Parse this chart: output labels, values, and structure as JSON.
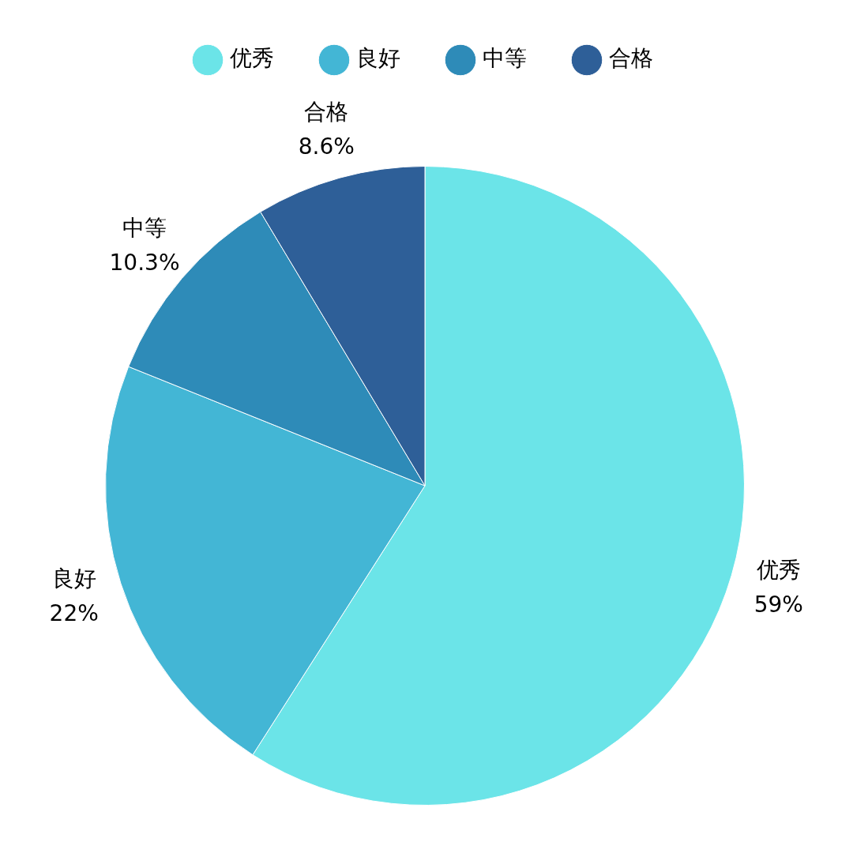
{
  "chart_data": {
    "type": "pie",
    "categories": [
      "优秀",
      "良好",
      "中等",
      "合格"
    ],
    "values": [
      59,
      22,
      10.3,
      8.6
    ],
    "colors": [
      "#6be4e8",
      "#43b6d5",
      "#2e8bb8",
      "#2e5f98"
    ],
    "value_labels": [
      "59%",
      "22%",
      "10.3%",
      "8.6%"
    ],
    "legend": "top",
    "marker": "circle"
  }
}
